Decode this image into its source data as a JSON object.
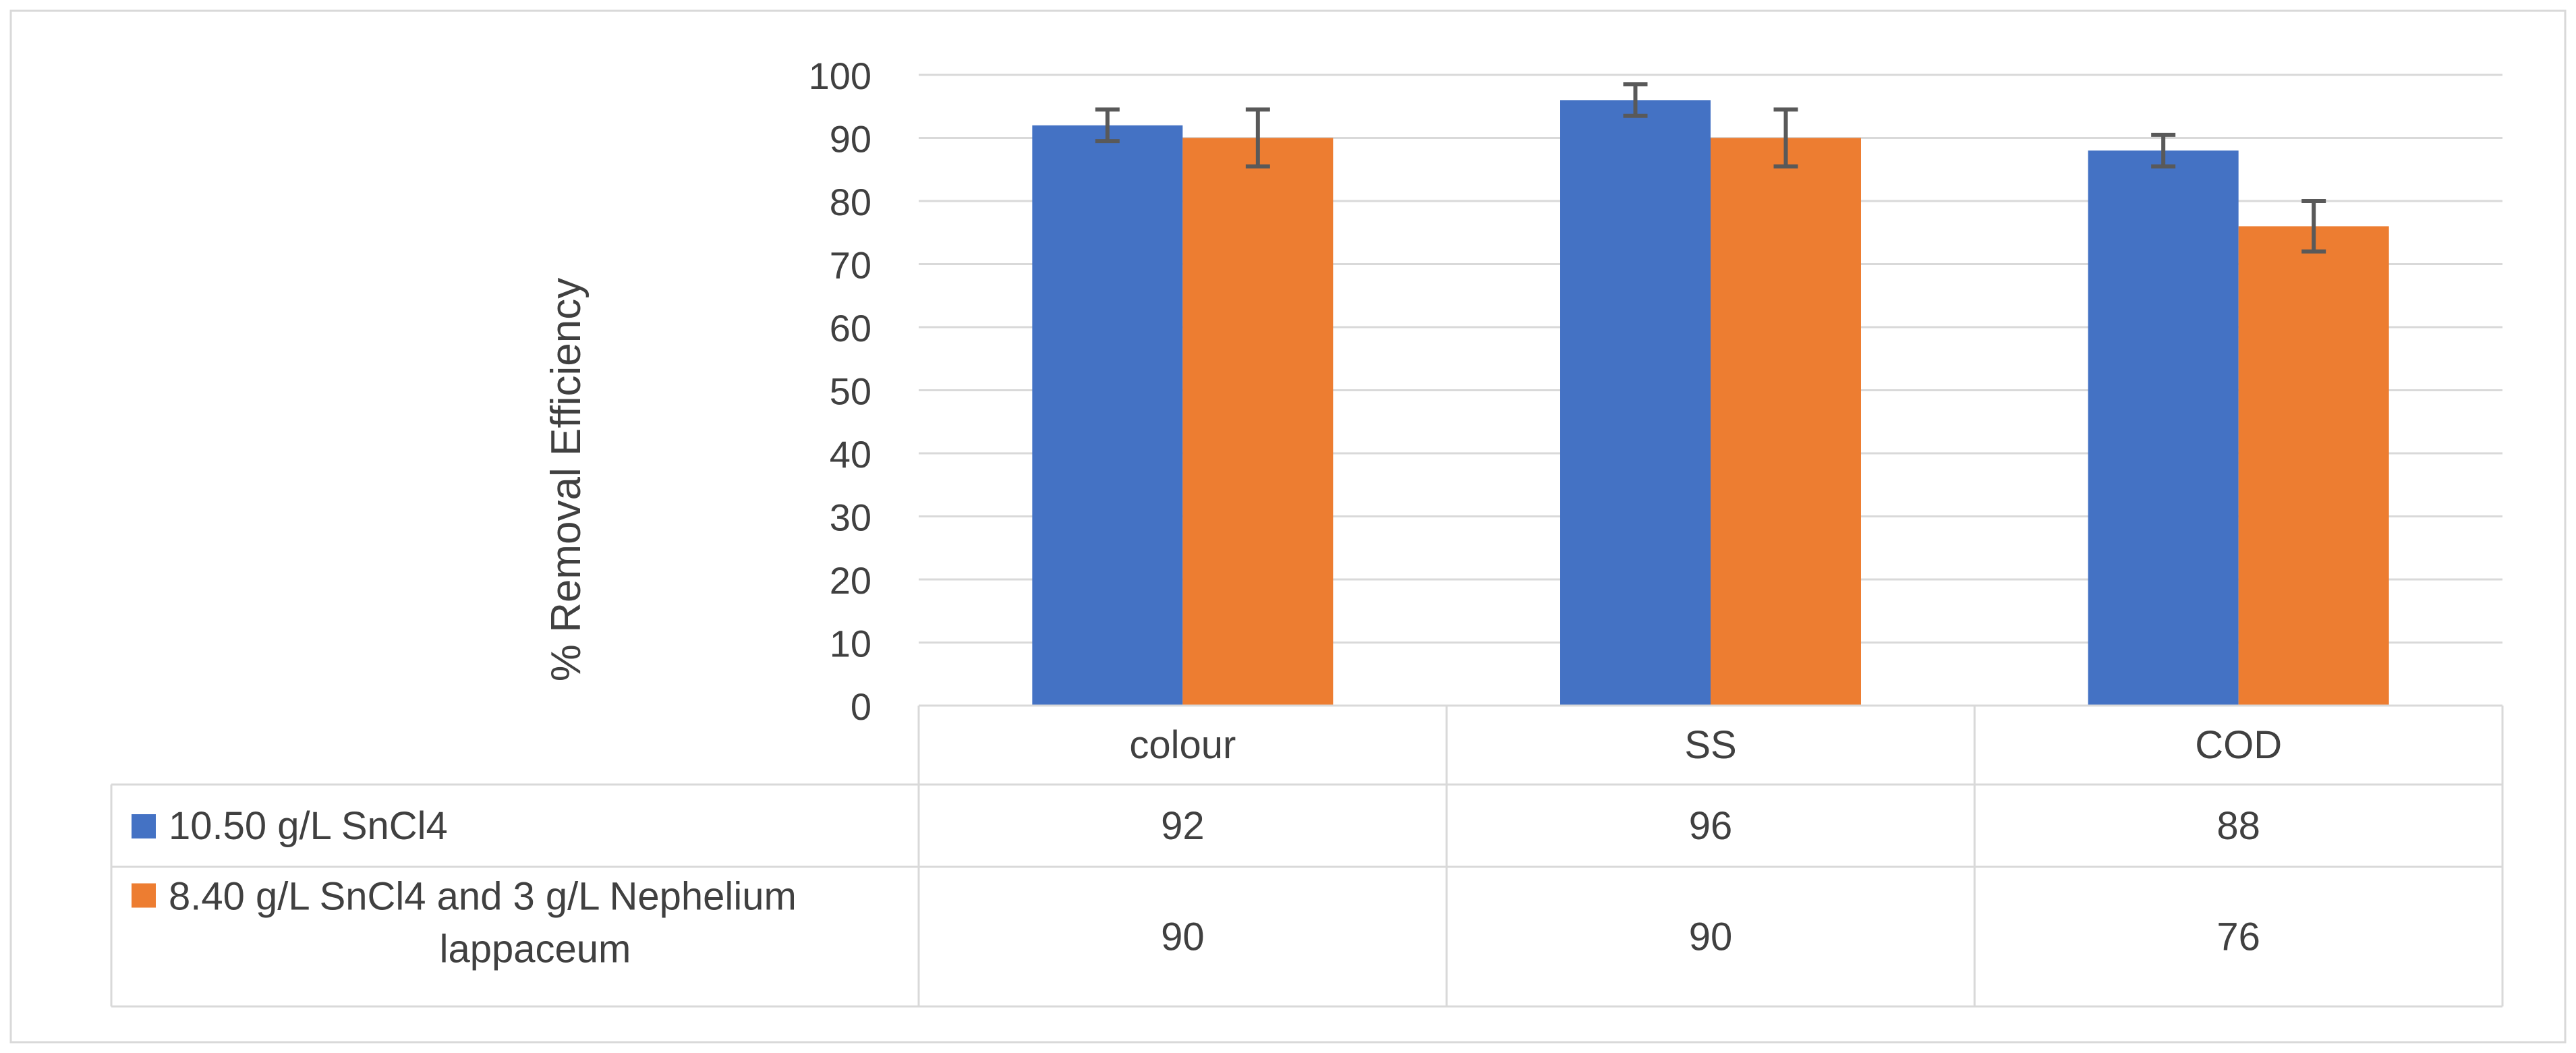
{
  "chart_data": {
    "type": "bar",
    "categories": [
      "colour",
      "SS",
      "COD"
    ],
    "series": [
      {
        "name": "10.50 g/L SnCl4",
        "values": [
          92,
          96,
          88
        ],
        "error": [
          2.5,
          2.5,
          2.5
        ],
        "color": "#4472C4"
      },
      {
        "name": "8.40 g/L SnCl4 and 3 g/L Nephelium lappaceum",
        "values": [
          90,
          90,
          76
        ],
        "error": [
          4.5,
          4.5,
          4
        ],
        "color": "#ED7D31"
      }
    ],
    "ylabel": "% Removal Efficiency",
    "xlabel": "",
    "ylim": [
      0,
      100
    ],
    "yticks": [
      0,
      10,
      20,
      30,
      40,
      50,
      60,
      70,
      80,
      90,
      100
    ],
    "grid": true,
    "legend": "data-table",
    "table_rows": [
      {
        "label": "10.50 g/L SnCl4",
        "label_lines": [
          "10.50 g/L SnCl4"
        ],
        "values": [
          "92",
          "96",
          "88"
        ]
      },
      {
        "label": "8.40 g/L SnCl4 and 3 g/L Nephelium lappaceum",
        "label_lines": [
          "8.40 g/L SnCl4 and 3 g/L Nephelium",
          "lappaceum"
        ],
        "values": [
          "90",
          "90",
          "76"
        ]
      }
    ],
    "colors": {
      "gridline": "#D9D9D9",
      "axis": "#D9D9D9",
      "text": "#404040",
      "errorbar": "#595959",
      "border": "#D9D9D9"
    }
  }
}
